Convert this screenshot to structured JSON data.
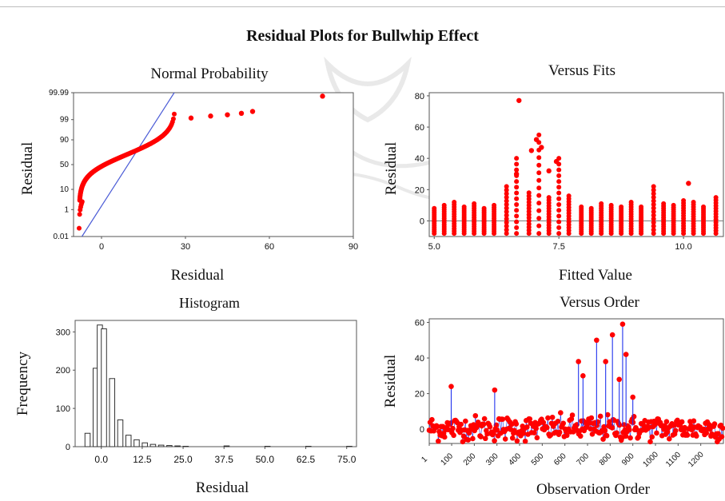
{
  "figure_title": "Residual Plots for Bullwhip Effect",
  "chart_data": [
    {
      "type": "scatter",
      "title": "Normal Probability",
      "xlabel": "Residual",
      "ylabel": "Residual",
      "xlim": [
        -10,
        90
      ],
      "xticks": [
        0,
        30,
        60,
        90
      ],
      "yticks_percent": [
        "0.01",
        "1",
        "10",
        "50",
        "90",
        "99",
        "99.99"
      ],
      "marker_color": "#ff0000",
      "line_color": "#4a5bd6",
      "outliers": [
        {
          "x": 79,
          "percent": 99.98
        },
        {
          "x": 54,
          "percent": 99.7
        },
        {
          "x": 50,
          "percent": 99.6
        },
        {
          "x": 45,
          "percent": 99.5
        },
        {
          "x": 39,
          "percent": 99.4
        },
        {
          "x": 32,
          "percent": 99.2
        }
      ]
    },
    {
      "type": "scatter",
      "title": "Versus Fits",
      "xlabel": "Fitted Value",
      "ylabel": "Residual",
      "xlim": [
        4.9,
        10.8
      ],
      "ylim": [
        -10,
        82
      ],
      "xticks": [
        "5.0",
        "7.5",
        "10.0"
      ],
      "yticks": [
        0,
        20,
        40,
        60,
        80
      ],
      "reference_line": 0,
      "columns": [
        {
          "x": 5.0,
          "max": 8
        },
        {
          "x": 5.2,
          "max": 10
        },
        {
          "x": 5.4,
          "max": 12
        },
        {
          "x": 5.6,
          "max": 9
        },
        {
          "x": 5.8,
          "max": 11
        },
        {
          "x": 6.0,
          "max": 8
        },
        {
          "x": 6.2,
          "max": 10
        },
        {
          "x": 6.45,
          "max": 22
        },
        {
          "x": 6.65,
          "max": 40
        },
        {
          "x": 6.9,
          "max": 18
        },
        {
          "x": 7.1,
          "max": 55
        },
        {
          "x": 7.3,
          "max": 15
        },
        {
          "x": 7.5,
          "max": 40
        },
        {
          "x": 7.7,
          "max": 16
        },
        {
          "x": 7.95,
          "max": 9
        },
        {
          "x": 8.15,
          "max": 8
        },
        {
          "x": 8.35,
          "max": 11
        },
        {
          "x": 8.55,
          "max": 10
        },
        {
          "x": 8.75,
          "max": 9
        },
        {
          "x": 8.95,
          "max": 12
        },
        {
          "x": 9.15,
          "max": 9
        },
        {
          "x": 9.4,
          "max": 22
        },
        {
          "x": 9.6,
          "max": 11
        },
        {
          "x": 9.8,
          "max": 10
        },
        {
          "x": 10.0,
          "max": 13
        },
        {
          "x": 10.2,
          "max": 12
        },
        {
          "x": 10.4,
          "max": 9
        },
        {
          "x": 10.65,
          "max": 15
        }
      ],
      "outliers": [
        {
          "x": 6.7,
          "y": 77
        },
        {
          "x": 7.05,
          "y": 52
        },
        {
          "x": 7.15,
          "y": 47
        },
        {
          "x": 6.95,
          "y": 45
        },
        {
          "x": 7.3,
          "y": 32
        },
        {
          "x": 7.45,
          "y": 38
        },
        {
          "x": 6.65,
          "y": 30
        },
        {
          "x": 10.1,
          "y": 24
        }
      ],
      "marker_color": "#ff0000"
    },
    {
      "type": "bar",
      "title": "Histogram",
      "xlabel": "Residual",
      "ylabel": "Frequency",
      "xlim": [
        -8,
        78
      ],
      "ylim": [
        0,
        330
      ],
      "xticks": [
        "0.0",
        "12.5",
        "25.0",
        "37.5",
        "50.0",
        "62.5",
        "75.0"
      ],
      "yticks": [
        0,
        100,
        200,
        300
      ],
      "bin_width": 2.5,
      "bins": [
        {
          "start": -7.5,
          "count": 0
        },
        {
          "start": -5.0,
          "count": 35
        },
        {
          "start": -2.5,
          "count": 205
        },
        {
          "start": -1.25,
          "count": 318
        },
        {
          "start": 0.0,
          "count": 308
        },
        {
          "start": 2.5,
          "count": 178
        },
        {
          "start": 5.0,
          "count": 70
        },
        {
          "start": 7.5,
          "count": 30
        },
        {
          "start": 10.0,
          "count": 18
        },
        {
          "start": 12.5,
          "count": 10
        },
        {
          "start": 15.0,
          "count": 6
        },
        {
          "start": 17.5,
          "count": 4
        },
        {
          "start": 20.0,
          "count": 3
        },
        {
          "start": 22.5,
          "count": 2
        },
        {
          "start": 25.0,
          "count": 1
        },
        {
          "start": 37.5,
          "count": 2
        },
        {
          "start": 50.0,
          "count": 1
        },
        {
          "start": 62.5,
          "count": 1
        },
        {
          "start": 75.0,
          "count": 1
        }
      ],
      "bar_color": "#ffffff",
      "edge_color": "#333333"
    },
    {
      "type": "line",
      "title": "Versus Order",
      "xlabel": "Observation Order",
      "ylabel": "Residual",
      "xlim": [
        1,
        1300
      ],
      "ylim": [
        -8,
        62
      ],
      "xticks": [
        "1",
        "100",
        "200",
        "300",
        "400",
        "500",
        "600",
        "700",
        "800",
        "900",
        "1000",
        "1100",
        "1200"
      ],
      "yticks": [
        0,
        20,
        40,
        60
      ],
      "spikes": [
        {
          "x": 98,
          "y": 24
        },
        {
          "x": 290,
          "y": 22
        },
        {
          "x": 660,
          "y": 38
        },
        {
          "x": 680,
          "y": 30
        },
        {
          "x": 740,
          "y": 50
        },
        {
          "x": 780,
          "y": 38
        },
        {
          "x": 810,
          "y": 53
        },
        {
          "x": 840,
          "y": 28
        },
        {
          "x": 855,
          "y": 59
        },
        {
          "x": 870,
          "y": 42
        },
        {
          "x": 900,
          "y": 18
        }
      ],
      "marker_color": "#ff0000",
      "line_color": "#2233ee"
    }
  ]
}
